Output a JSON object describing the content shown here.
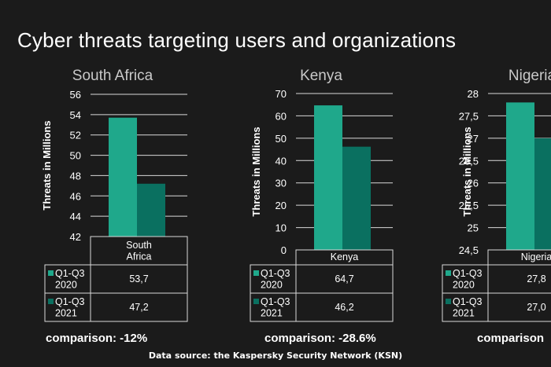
{
  "title": "Cyber threats targeting users and organizations",
  "source": "Data source: the Kaspersky Security Network (KSN)",
  "colors": {
    "background": "#1b1b1b",
    "series_2020": "#1fa88b",
    "series_2021": "#0a7060",
    "text": "#ffffff",
    "chart_title": "#c9c9c9",
    "grid": "#d9d9d9"
  },
  "chart_data": [
    {
      "type": "bar",
      "title": "South Africa",
      "ylabel": "Threats in Millions",
      "categories": [
        "South\nAfrica"
      ],
      "ylim": [
        42,
        56
      ],
      "yticks": [
        "42",
        "44",
        "46",
        "48",
        "50",
        "52",
        "54",
        "56"
      ],
      "tickvals": [
        42,
        44,
        46,
        48,
        50,
        52,
        54,
        56
      ],
      "series": [
        {
          "name": "Q1-Q3\n2020",
          "values": [
            53.7
          ],
          "label": "53,7"
        },
        {
          "name": "Q1-Q3\n2021",
          "values": [
            47.2
          ],
          "label": "47,2"
        }
      ],
      "comparison": "comparison: -12%"
    },
    {
      "type": "bar",
      "title": "Kenya",
      "ylabel": "Threats in Millions",
      "categories": [
        "Kenya"
      ],
      "ylim": [
        0,
        70
      ],
      "yticks": [
        "0",
        "10",
        "20",
        "30",
        "40",
        "50",
        "60",
        "70"
      ],
      "tickvals": [
        0,
        10,
        20,
        30,
        40,
        50,
        60,
        70
      ],
      "series": [
        {
          "name": "Q1-Q3\n2020",
          "values": [
            64.7
          ],
          "label": "64,7"
        },
        {
          "name": "Q1-Q3\n2021",
          "values": [
            46.2
          ],
          "label": "46,2"
        }
      ],
      "comparison": "comparison: -28.6%"
    },
    {
      "type": "bar",
      "title": "Nigeria",
      "ylabel": "Threats in Millions",
      "categories": [
        "Nigeria"
      ],
      "ylim": [
        24.5,
        28
      ],
      "yticks": [
        "24,5",
        "25",
        "25,5",
        "26",
        "26,5",
        "27",
        "27,5",
        "28"
      ],
      "tickvals": [
        24.5,
        25,
        25.5,
        26,
        26.5,
        27,
        27.5,
        28
      ],
      "series": [
        {
          "name": "Q1-Q3\n2020",
          "values": [
            27.8
          ],
          "label": "27,8"
        },
        {
          "name": "Q1-Q3\n2021",
          "values": [
            27.0
          ],
          "label": "27,0"
        }
      ],
      "comparison": "comparison"
    }
  ]
}
